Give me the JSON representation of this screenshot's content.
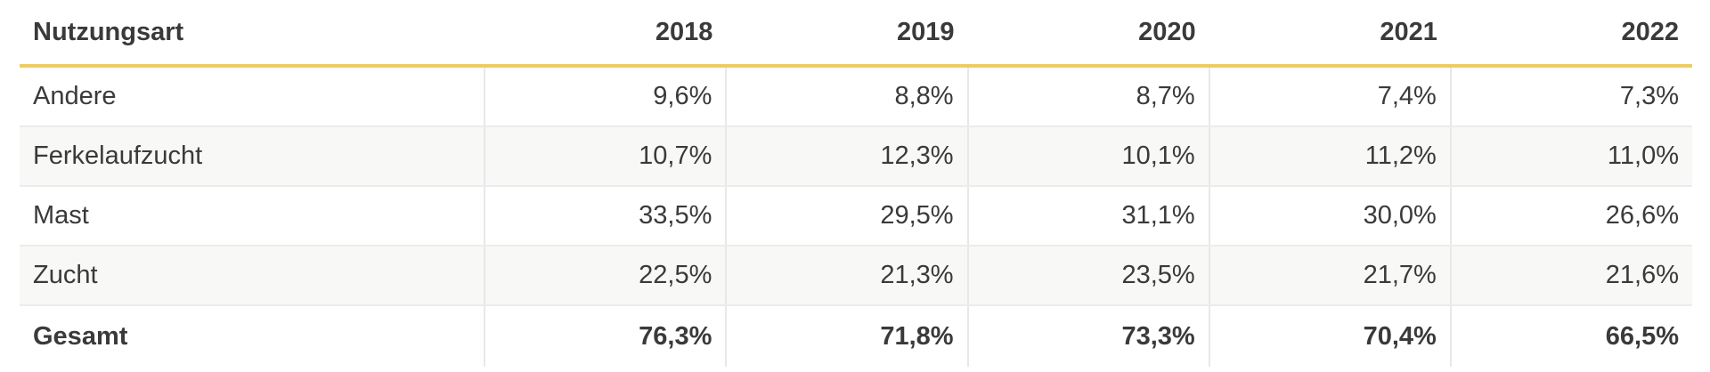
{
  "table": {
    "headers": [
      "Nutzungsart",
      "2018",
      "2019",
      "2020",
      "2021",
      "2022"
    ],
    "rows": [
      {
        "label": "Andere",
        "values": [
          "9,6%",
          "8,8%",
          "8,7%",
          "7,4%",
          "7,3%"
        ]
      },
      {
        "label": "Ferkelaufzucht",
        "values": [
          "10,7%",
          "12,3%",
          "10,1%",
          "11,2%",
          "11,0%"
        ]
      },
      {
        "label": "Mast",
        "values": [
          "33,5%",
          "29,5%",
          "31,1%",
          "30,0%",
          "26,6%"
        ]
      },
      {
        "label": "Zucht",
        "values": [
          "22,5%",
          "21,3%",
          "23,5%",
          "21,7%",
          "21,6%"
        ]
      },
      {
        "label": "Gesamt",
        "values": [
          "76,3%",
          "71,8%",
          "73,3%",
          "70,4%",
          "66,5%"
        ]
      }
    ]
  },
  "colors": {
    "header_rule": "#f0cc5c",
    "alt_row": "#f8f8f7",
    "text": "#3a3a3a"
  }
}
